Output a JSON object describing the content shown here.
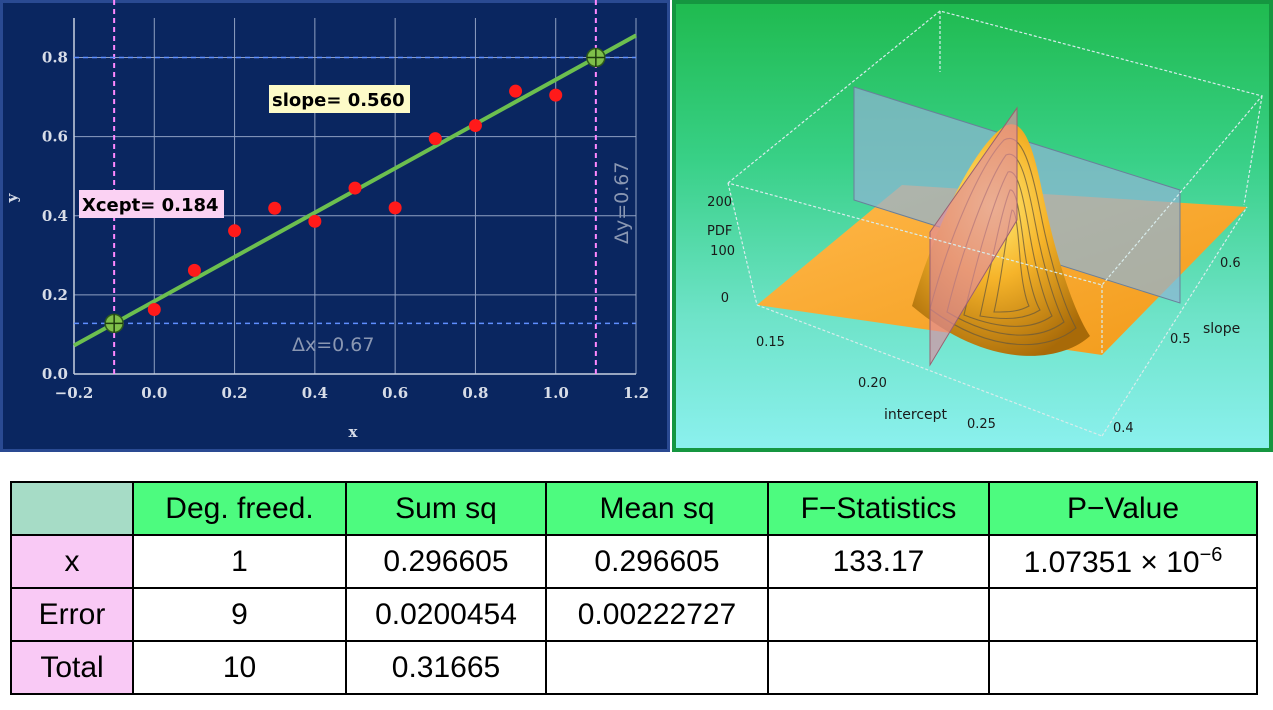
{
  "colors": {
    "panel_bg": "#0a2660",
    "grid": "#8fa0c2",
    "points": "#ff1a1a",
    "fit_line": "#6cbf4f",
    "guide_pink": "#ff88ff",
    "guide_blue": "#5f8fff",
    "table_header": "#4dfb7f",
    "row_label": "#f9c9f5"
  },
  "chart_data": [
    {
      "type": "scatter",
      "xlabel": "x",
      "ylabel": "y",
      "xlim": [
        -0.2,
        1.2
      ],
      "ylim": [
        0.0,
        0.9
      ],
      "x_ticks": [
        "−0.2",
        "0.0",
        "0.2",
        "0.4",
        "0.6",
        "0.8",
        "1.0",
        "1.2"
      ],
      "y_ticks": [
        "0.0",
        "0.2",
        "0.4",
        "0.6",
        "0.8"
      ],
      "points": [
        {
          "x": 0.0,
          "y": 0.163
        },
        {
          "x": 0.1,
          "y": 0.262
        },
        {
          "x": 0.2,
          "y": 0.362
        },
        {
          "x": 0.3,
          "y": 0.419
        },
        {
          "x": 0.4,
          "y": 0.386
        },
        {
          "x": 0.5,
          "y": 0.47
        },
        {
          "x": 0.6,
          "y": 0.42
        },
        {
          "x": 0.7,
          "y": 0.595
        },
        {
          "x": 0.8,
          "y": 0.628
        },
        {
          "x": 0.9,
          "y": 0.715
        },
        {
          "x": 1.0,
          "y": 0.705
        }
      ],
      "fit": {
        "slope": 0.56,
        "intercept": 0.184
      },
      "markers": [
        {
          "x": -0.1,
          "y": 0.128
        },
        {
          "x": 1.1,
          "y": 0.8
        }
      ],
      "annotations": {
        "slope": "slope= 0.560",
        "xcept": "Xcept= 0.184",
        "dx": "Δx=0.67",
        "dy": "Δy=0.67"
      }
    },
    {
      "type": "surface3d",
      "z_axis": {
        "label": "PDF",
        "ticks": [
          "0",
          "100",
          "200"
        ]
      },
      "x_axis": {
        "label": "intercept",
        "ticks": [
          "0.15",
          "0.20",
          "0.25"
        ]
      },
      "y_axis": {
        "label": "slope",
        "ticks": [
          "0.4",
          "0.5",
          "0.6"
        ]
      }
    }
  ],
  "table": {
    "headers": [
      "",
      "Deg. freed.",
      "Sum sq",
      "Mean sq",
      "F−Statistics",
      "P−Value"
    ],
    "rows": [
      {
        "label": "x",
        "df": "1",
        "ss": "0.296605",
        "ms": "0.296605",
        "f": "133.17",
        "p_mant": "1.07351 × 10",
        "p_exp": "−6"
      },
      {
        "label": "Error",
        "df": "9",
        "ss": "0.0200454",
        "ms": "0.00222727",
        "f": "",
        "p_mant": "",
        "p_exp": ""
      },
      {
        "label": "Total",
        "df": "10",
        "ss": "0.31665",
        "ms": "",
        "f": "",
        "p_mant": "",
        "p_exp": ""
      }
    ]
  }
}
